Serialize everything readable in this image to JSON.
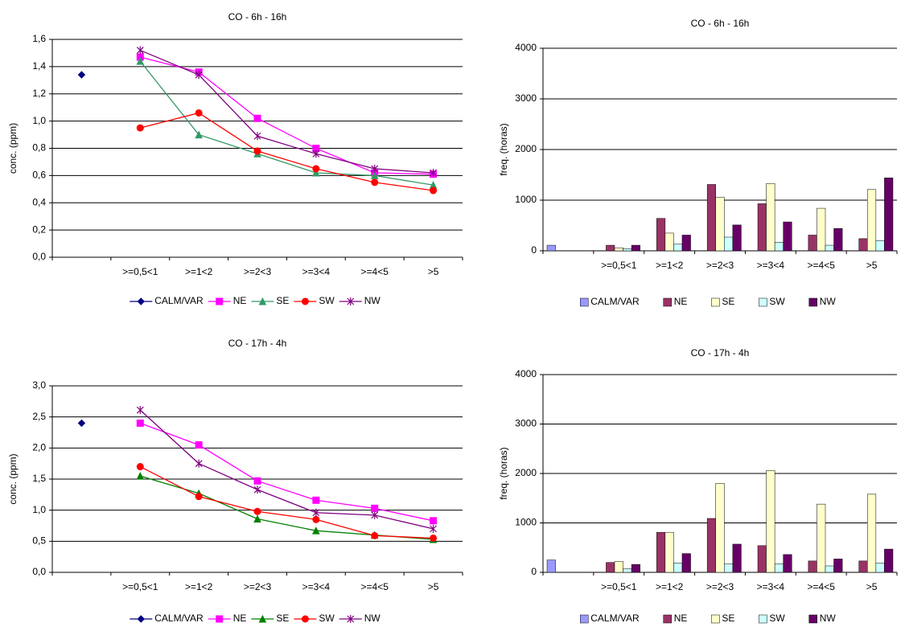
{
  "chart_data": [
    {
      "type": "line",
      "title": "CO - 6h - 16h",
      "y_label": "conc. (ppm)",
      "categories": [
        null,
        ">=0,5<1",
        ">=1<2",
        ">=2<3",
        ">=3<4",
        ">=4<5",
        ">5"
      ],
      "ylim": [
        0,
        1.6
      ],
      "yticks": [
        {
          "value": 0,
          "label": "0,0"
        },
        {
          "value": 0.2,
          "label": "0,2"
        },
        {
          "value": 0.4,
          "label": "0,4"
        },
        {
          "value": 0.6,
          "label": "0,6"
        },
        {
          "value": 0.8,
          "label": "0,8"
        },
        {
          "value": 1.0,
          "label": "1,0"
        },
        {
          "value": 1.2,
          "label": "1,2"
        },
        {
          "value": 1.4,
          "label": "1,4"
        },
        {
          "value": 1.6,
          "label": "1,6"
        }
      ],
      "grid": true,
      "series": [
        {
          "name": "CALM/VAR",
          "color": "#000080",
          "marker": "diamond",
          "values": [
            1.34,
            null,
            null,
            null,
            null,
            null,
            null
          ]
        },
        {
          "name": "NE",
          "color": "#ff00ff",
          "marker": "square",
          "values": [
            null,
            1.47,
            1.36,
            1.02,
            0.8,
            0.62,
            0.61
          ]
        },
        {
          "name": "SE",
          "color": "#339966",
          "marker": "triangle",
          "values": [
            null,
            1.44,
            0.9,
            0.76,
            0.62,
            0.6,
            0.53
          ]
        },
        {
          "name": "SW",
          "color": "#ff0000",
          "marker": "circle",
          "values": [
            null,
            0.95,
            1.06,
            0.78,
            0.65,
            0.55,
            0.49
          ]
        },
        {
          "name": "NW",
          "color": "#800080",
          "marker": "star",
          "values": [
            null,
            1.52,
            1.34,
            0.89,
            0.76,
            0.65,
            0.62
          ]
        }
      ]
    },
    {
      "type": "bar",
      "title": "CO - 6h - 16h",
      "y_label": "freq. (horas)",
      "categories": [
        null,
        ">=0,5<1",
        ">=1<2",
        ">=2<3",
        ">=3<4",
        ">=4<5",
        ">5"
      ],
      "ylim": [
        0,
        4000
      ],
      "yticks": [
        0,
        1000,
        2000,
        3000,
        4000
      ],
      "grid": true,
      "series": [
        {
          "name": "CALM/VAR",
          "color": "#9999ff",
          "values": [
            110,
            null,
            null,
            null,
            null,
            null,
            null
          ]
        },
        {
          "name": "NE",
          "color": "#993366",
          "values": [
            null,
            110,
            640,
            1310,
            930,
            310,
            240
          ]
        },
        {
          "name": "SE",
          "color": "#ffffcc",
          "values": [
            null,
            60,
            350,
            1060,
            1330,
            840,
            1210
          ]
        },
        {
          "name": "SW",
          "color": "#ccffff",
          "values": [
            null,
            40,
            130,
            270,
            170,
            110,
            200
          ]
        },
        {
          "name": "NW",
          "color": "#660066",
          "values": [
            null,
            110,
            310,
            510,
            570,
            440,
            1440
          ]
        }
      ]
    },
    {
      "type": "line",
      "title": "CO - 17h - 4h",
      "y_label": "conc. (ppm)",
      "categories": [
        null,
        ">=0,5<1",
        ">=1<2",
        ">=2<3",
        ">=3<4",
        ">=4<5",
        ">5"
      ],
      "ylim": [
        0,
        3.0
      ],
      "yticks": [
        {
          "value": 0,
          "label": "0,0"
        },
        {
          "value": 0.5,
          "label": "0,5"
        },
        {
          "value": 1.0,
          "label": "1,0"
        },
        {
          "value": 1.5,
          "label": "1,5"
        },
        {
          "value": 2.0,
          "label": "2,0"
        },
        {
          "value": 2.5,
          "label": "2,5"
        },
        {
          "value": 3.0,
          "label": "3,0"
        }
      ],
      "grid": true,
      "series": [
        {
          "name": "CALM/VAR",
          "color": "#000080",
          "marker": "diamond",
          "values": [
            2.4,
            null,
            null,
            null,
            null,
            null,
            null
          ]
        },
        {
          "name": "NE",
          "color": "#ff00ff",
          "marker": "square",
          "values": [
            null,
            2.4,
            2.05,
            1.47,
            1.16,
            1.03,
            0.83
          ]
        },
        {
          "name": "SE",
          "color": "#008000",
          "marker": "triangle",
          "values": [
            null,
            1.55,
            1.27,
            0.86,
            0.67,
            0.6,
            0.53
          ]
        },
        {
          "name": "SW",
          "color": "#ff0000",
          "marker": "circle",
          "values": [
            null,
            1.7,
            1.22,
            0.98,
            0.85,
            0.59,
            0.55
          ]
        },
        {
          "name": "NW",
          "color": "#800080",
          "marker": "star",
          "values": [
            null,
            2.61,
            1.75,
            1.33,
            0.96,
            0.92,
            0.7
          ]
        }
      ]
    },
    {
      "type": "bar",
      "title": "CO - 17h - 4h",
      "y_label": "freq. (horas)",
      "categories": [
        null,
        ">=0,5<1",
        ">=1<2",
        ">=2<3",
        ">=3<4",
        ">=4<5",
        ">5"
      ],
      "ylim": [
        0,
        4000
      ],
      "yticks": [
        0,
        1000,
        2000,
        3000,
        4000
      ],
      "grid": true,
      "series": [
        {
          "name": "CALM/VAR",
          "color": "#9999ff",
          "values": [
            250,
            null,
            null,
            null,
            null,
            null,
            null
          ]
        },
        {
          "name": "NE",
          "color": "#993366",
          "values": [
            null,
            200,
            810,
            1090,
            540,
            230,
            230
          ]
        },
        {
          "name": "SE",
          "color": "#ffffcc",
          "values": [
            null,
            220,
            810,
            1800,
            2060,
            1380,
            1580
          ]
        },
        {
          "name": "SW",
          "color": "#ccffff",
          "values": [
            null,
            70,
            190,
            170,
            170,
            130,
            190
          ]
        },
        {
          "name": "NW",
          "color": "#660066",
          "values": [
            null,
            160,
            380,
            570,
            360,
            270,
            470
          ]
        }
      ]
    }
  ]
}
